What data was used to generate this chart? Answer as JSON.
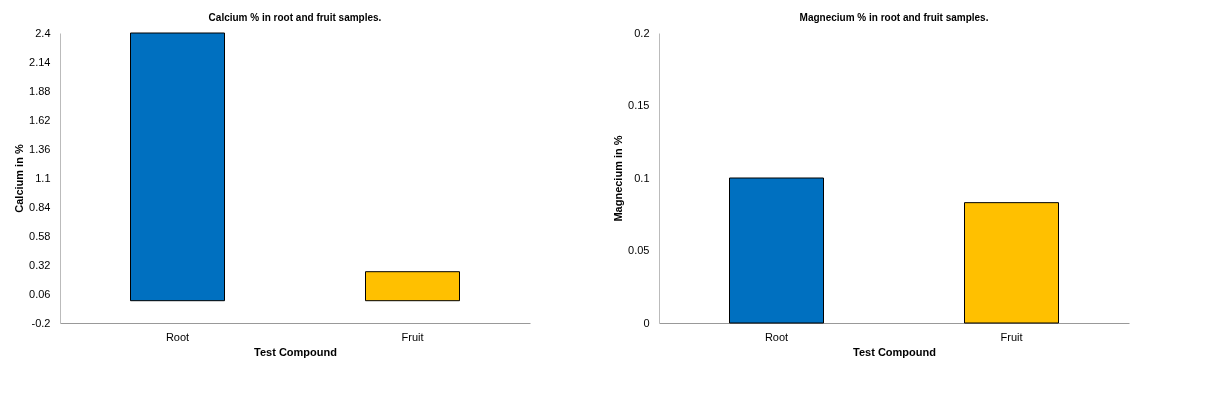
{
  "chart_data": [
    {
      "type": "bar",
      "title": "Calcium % in root and fruit samples.",
      "xlabel": "Test Compound",
      "ylabel": "Calcium  in %",
      "categories": [
        "Root",
        "Fruit"
      ],
      "values": [
        2.4,
        0.26
      ],
      "colors": [
        "#0070c0",
        "#ffc000"
      ],
      "ylim": [
        -0.2,
        2.4
      ],
      "yticks": [
        -0.2,
        0.06,
        0.32,
        0.58,
        0.84,
        1.1,
        1.36,
        1.62,
        1.88,
        2.14,
        2.4
      ]
    },
    {
      "type": "bar",
      "title": "Magnecium % in root and fruit samples.",
      "xlabel": "Test Compound",
      "ylabel": "Magnecium  in %",
      "categories": [
        "Root",
        "Fruit"
      ],
      "values": [
        0.1,
        0.083
      ],
      "colors": [
        "#0070c0",
        "#ffc000"
      ],
      "ylim": [
        0,
        0.2
      ],
      "yticks": [
        0,
        0.05,
        0.1,
        0.15,
        0.2
      ]
    }
  ]
}
